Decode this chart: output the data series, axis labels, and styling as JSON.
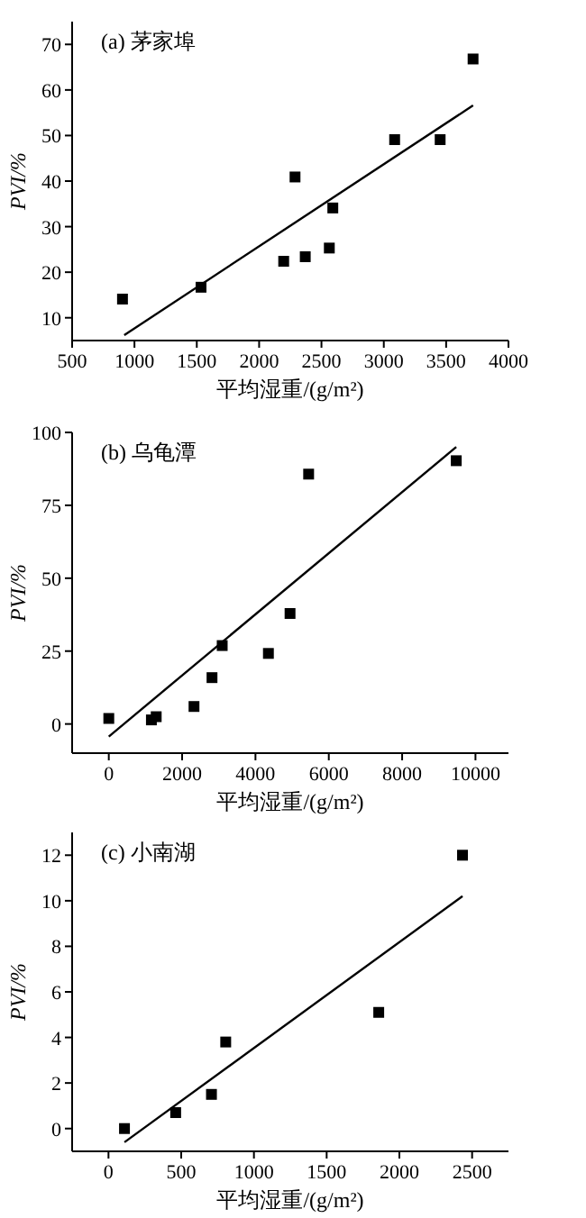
{
  "chart_data": [
    {
      "type": "scatter",
      "title": "(a) 茅家埠",
      "xlabel": "平均湿重/(g/m²)",
      "ylabel": "PVI/%",
      "xlim": [
        500,
        4000
      ],
      "xticks": [
        500,
        1000,
        1500,
        2000,
        2500,
        3000,
        3500,
        4000
      ],
      "ylim": [
        5,
        75
      ],
      "yticks": [
        10,
        20,
        30,
        40,
        50,
        60,
        70
      ],
      "grid": false,
      "series": [
        {
          "color": "#000000",
          "marker": "square",
          "x": [
            904,
            1534,
            2197,
            2288,
            2370,
            2563,
            2591,
            3087,
            3452,
            3716
          ],
          "values": [
            14.1,
            16.7,
            22.4,
            40.9,
            23.4,
            25.3,
            34.1,
            49.1,
            49.1,
            66.8
          ]
        },
        {
          "type": "line",
          "color": "#000000",
          "marker": "none",
          "x": [
            918,
            3716
          ],
          "values": [
            6.2,
            56.6
          ]
        }
      ]
    },
    {
      "type": "scatter",
      "title": "(b) 乌龟潭",
      "xlabel": "平均湿重/(g/m²)",
      "ylabel": "PVI/%",
      "xlim": [
        -1000,
        10900
      ],
      "xticks": [
        0,
        2000,
        4000,
        6000,
        8000,
        10000
      ],
      "ylim": [
        -10,
        100
      ],
      "yticks": [
        0,
        25,
        50,
        75,
        100
      ],
      "grid": false,
      "series": [
        {
          "color": "#000000",
          "marker": "square",
          "x": [
            0,
            1162,
            1293,
            2324,
            2815,
            3093,
            4353,
            4943,
            5450,
            9476
          ],
          "values": [
            1.9,
            1.4,
            2.5,
            6.0,
            15.9,
            26.9,
            24.2,
            37.9,
            85.7,
            90.3
          ]
        },
        {
          "type": "line",
          "color": "#000000",
          "marker": "none",
          "x": [
            0,
            9476
          ],
          "values": [
            -4.3,
            95.0
          ]
        }
      ]
    },
    {
      "type": "scatter",
      "title": "(c) 小南湖",
      "xlabel": "平均湿重/(g/m²)",
      "ylabel": "PVI/%",
      "xlim": [
        -250,
        2750
      ],
      "xticks": [
        0,
        500,
        1000,
        1500,
        2000,
        2500
      ],
      "ylim": [
        -1,
        13
      ],
      "yticks": [
        0,
        2,
        4,
        6,
        8,
        10,
        12
      ],
      "grid": false,
      "series": [
        {
          "color": "#000000",
          "marker": "square",
          "x": [
            110,
            462,
            708,
            806,
            1858,
            2434
          ],
          "values": [
            0,
            0.7,
            1.5,
            3.8,
            5.1,
            12.0
          ]
        },
        {
          "type": "line",
          "color": "#000000",
          "marker": "none",
          "x": [
            110,
            2434
          ],
          "values": [
            -0.6,
            10.2
          ]
        }
      ]
    }
  ]
}
